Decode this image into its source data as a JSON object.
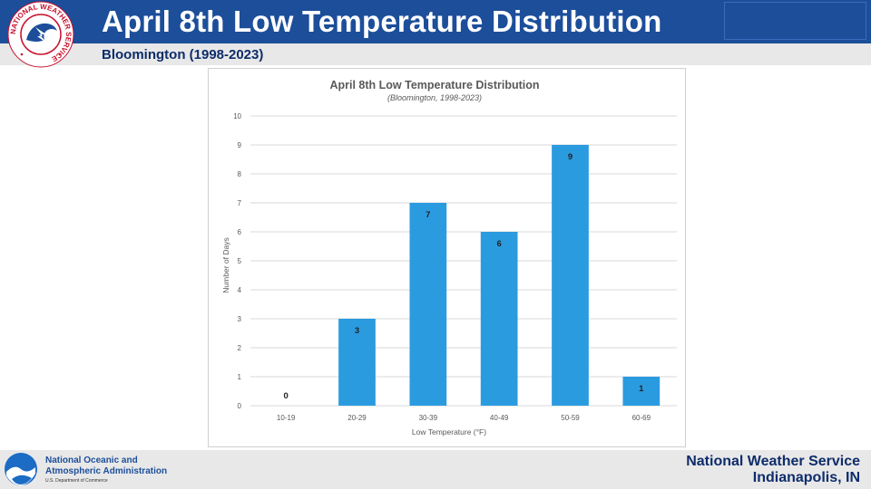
{
  "header": {
    "title": "April 8th Low Temperature Distribution",
    "subtitle": "Bloomington (1998-2023)"
  },
  "logos": {
    "nws_ring_text": "NATIONAL WEATHER SERVICE"
  },
  "chart_data": {
    "type": "bar",
    "title": "April 8th Low Temperature Distribution",
    "subtitle": "(Bloomington, 1998-2023)",
    "xlabel": "Low Temperature (°F)",
    "ylabel": "Number of Days",
    "categories": [
      "10-19",
      "20-29",
      "30-39",
      "40-49",
      "50-59",
      "60-69"
    ],
    "values": [
      0,
      3,
      7,
      6,
      9,
      1
    ],
    "data_labels": [
      "0",
      "3",
      "7",
      "6",
      "9",
      "1"
    ],
    "ylim": [
      0,
      10
    ],
    "yticks": [
      "0",
      "1",
      "2",
      "3",
      "4",
      "5",
      "6",
      "7",
      "8",
      "9",
      "10"
    ],
    "grid": true,
    "legend": "none",
    "bar_color": "#2b9be0"
  },
  "footer": {
    "noaa_line1": "National Oceanic and",
    "noaa_line2": "Atmospheric Administration",
    "noaa_dept": "U.S. Department of Commerce",
    "nws_name": "National Weather Service",
    "nws_office": "Indianapolis, IN"
  },
  "colors": {
    "header_blue": "#1c4e9a",
    "text_navy": "#0d2c6b",
    "bar": "#2b9be0"
  }
}
